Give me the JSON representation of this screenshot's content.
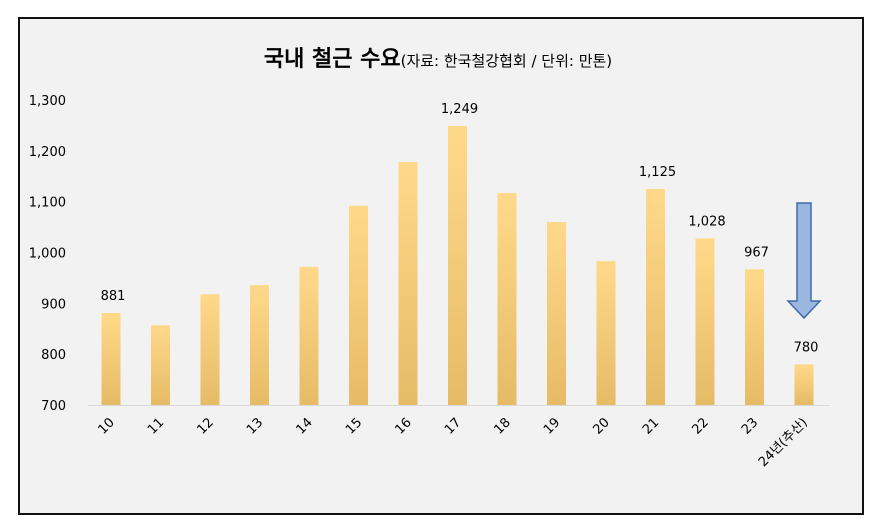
{
  "chart_data": {
    "type": "bar",
    "title": "국내 철근 수요",
    "subtitle": "(자료: 한국철강협회 / 단위: 만톤)",
    "categories": [
      "10",
      "11",
      "12",
      "13",
      "14",
      "15",
      "16",
      "17",
      "18",
      "19",
      "20",
      "21",
      "22",
      "23",
      "24년(추산)"
    ],
    "values": [
      881,
      857,
      918,
      936,
      972,
      1092,
      1178,
      1249,
      1117,
      1060,
      983,
      1125,
      1028,
      967,
      780
    ],
    "data_labels": {
      "0": "881",
      "7": "1,249",
      "11": "1,125",
      "12": "1,028",
      "13": "967",
      "14": "780"
    },
    "ylim": [
      700,
      1300
    ],
    "yticks": [
      "700",
      "800",
      "900",
      "1,000",
      "1,100",
      "1,200",
      "1,300"
    ],
    "xlabel": "",
    "ylabel": "",
    "grid": false,
    "annotation": "down-arrow above last bar",
    "colors": {
      "bar_top": "#ffd98a",
      "bar_bottom": "#e6bb66",
      "arrow_fill": "#9bb7e0",
      "arrow_stroke": "#3f6aa8"
    }
  }
}
